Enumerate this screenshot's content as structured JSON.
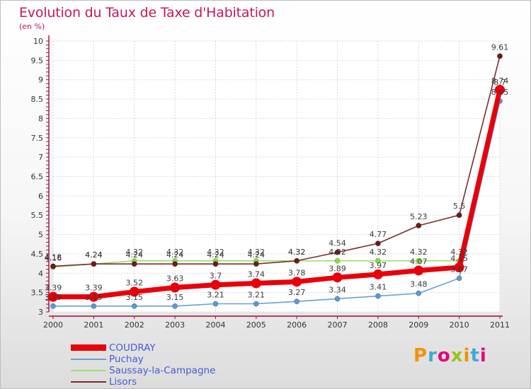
{
  "chart_data": {
    "type": "line",
    "title": "Evolution du Taux de Taxe d'Habitation",
    "subtitle": "(en %)",
    "x": [
      "2000",
      "2001",
      "2002",
      "2003",
      "2004",
      "2005",
      "2006",
      "2007",
      "2008",
      "2009",
      "2010",
      "2011"
    ],
    "ylim": [
      3,
      10
    ],
    "yticks": [
      "3",
      "3.5",
      "4",
      "4.5",
      "5",
      "5.5",
      "6",
      "6.5",
      "7",
      "7.5",
      "8",
      "8.5",
      "9",
      "9.5",
      "10"
    ],
    "grid": true,
    "legend_position": "bottom-left",
    "series": [
      {
        "name": "COUDRAY",
        "color": "#e8000b",
        "values": [
          3.39,
          3.39,
          3.52,
          3.63,
          3.7,
          3.74,
          3.78,
          3.89,
          3.97,
          4.07,
          4.15,
          8.74
        ],
        "labels": [
          "3.39",
          "3.39",
          "3.52",
          "3.63",
          "3.7",
          "3.74",
          "3.78",
          "3.89",
          "3.97",
          "4.07",
          "4.15",
          "8.74"
        ]
      },
      {
        "name": "Puchay",
        "color": "#6b9fcf",
        "values": [
          3.15,
          3.15,
          3.15,
          3.15,
          3.21,
          3.21,
          3.27,
          3.34,
          3.41,
          3.48,
          3.87,
          8.45
        ],
        "labels": [
          "3.15",
          "3.15",
          "3.15",
          "3.15",
          "3.21",
          "3.21",
          "3.27",
          "3.34",
          "3.41",
          "3.48",
          "3.87",
          "8.45"
        ]
      },
      {
        "name": "Saussay-la-Campagne",
        "color": "#9ede6e",
        "values": [
          4.16,
          4.24,
          4.32,
          4.32,
          4.32,
          4.32,
          4.32,
          4.32,
          4.32,
          4.32,
          4.32,
          8.7
        ],
        "labels": [
          "4.16",
          "4.24",
          "4.32",
          "4.32",
          "4.32",
          "4.32",
          "4.32",
          "4.32",
          "4.32",
          "4.32",
          "4.32",
          "8.7"
        ]
      },
      {
        "name": "Lisors",
        "color": "#7b2d2d",
        "values": [
          4.18,
          4.24,
          4.24,
          4.24,
          4.24,
          4.24,
          4.32,
          4.54,
          4.77,
          5.23,
          5.5,
          9.61
        ],
        "labels": [
          "4.18",
          "4.24",
          "4.24",
          "4.24",
          "4.24",
          "4.24",
          "4.32",
          "4.54",
          "4.77",
          "5.23",
          "5.5",
          "9.61"
        ]
      }
    ]
  },
  "brand": {
    "text": "Proxiti",
    "colors": [
      "#f39200",
      "#3fa9d6",
      "#e6007e",
      "#9ac31c",
      "#f39200",
      "#3fa9d6",
      "#e6007e"
    ]
  }
}
